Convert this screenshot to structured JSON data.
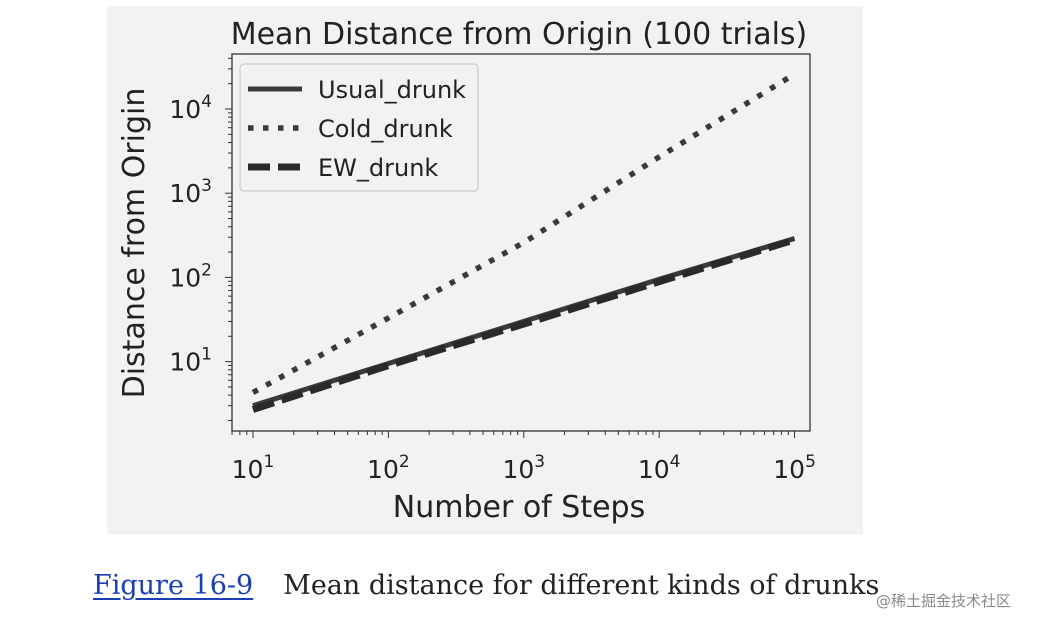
{
  "chart_data": {
    "type": "line",
    "title": "Mean Distance from Origin (100 trials)",
    "xlabel": "Number of Steps",
    "ylabel": "Distance from Origin",
    "xscale": "log",
    "yscale": "log",
    "xlim": [
      7,
      130000
    ],
    "ylim": [
      1.5,
      45000
    ],
    "x_ticks": [
      {
        "value": 10,
        "base": "10",
        "exp": "1"
      },
      {
        "value": 100,
        "base": "10",
        "exp": "2"
      },
      {
        "value": 1000,
        "base": "10",
        "exp": "3"
      },
      {
        "value": 10000,
        "base": "10",
        "exp": "4"
      },
      {
        "value": 100000,
        "base": "10",
        "exp": "5"
      }
    ],
    "y_ticks": [
      {
        "value": 10,
        "base": "10",
        "exp": "1"
      },
      {
        "value": 100,
        "base": "10",
        "exp": "2"
      },
      {
        "value": 1000,
        "base": "10",
        "exp": "3"
      },
      {
        "value": 10000,
        "base": "10",
        "exp": "4"
      }
    ],
    "x": [
      10,
      100,
      1000,
      10000,
      100000
    ],
    "series": [
      {
        "name": "Usual_drunk",
        "style": "solid",
        "color": "#3a3a3a",
        "values": [
          3.0,
          9.5,
          30,
          95,
          290
        ]
      },
      {
        "name": "Cold_drunk",
        "style": "dotted",
        "color": "#3a3a3a",
        "values": [
          4.3,
          33,
          260,
          2700,
          26000
        ]
      },
      {
        "name": "EW_drunk",
        "style": "dashed",
        "color": "#2a2a2a",
        "values": [
          2.7,
          9.0,
          28,
          89,
          280
        ]
      }
    ],
    "legend_position": "top-left",
    "grid": false
  },
  "caption": {
    "link_text": "Figure 16-9",
    "text": "Mean distance for different kinds of drunks"
  },
  "watermark": "@稀土掘金技术社区"
}
